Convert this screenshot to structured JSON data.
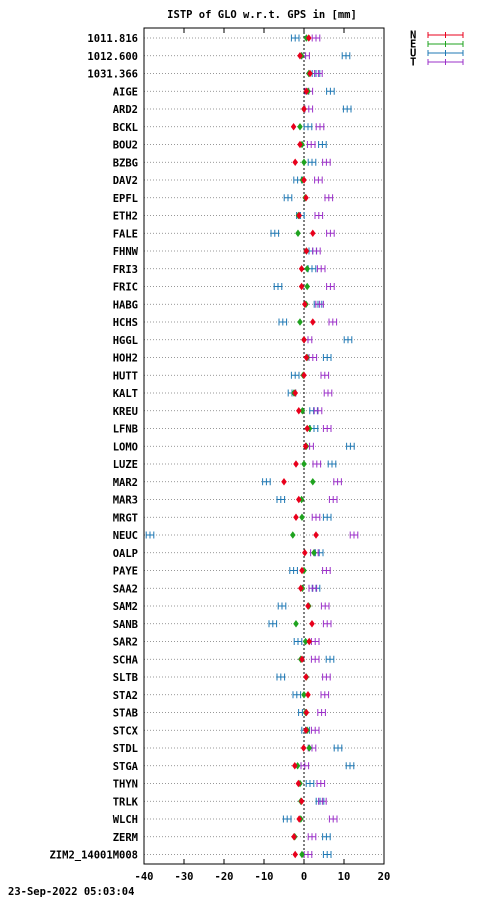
{
  "chart_data": {
    "type": "scatter",
    "title": "ISTP of GLO w.r.t. GPS in [mm]",
    "xlim": [
      -40,
      20
    ],
    "x_ticks": [
      "-40",
      "-30",
      "-20",
      "-10",
      "0",
      "10",
      "20"
    ],
    "x_tick_values": [
      -40,
      -30,
      -20,
      -10,
      0,
      10,
      20
    ],
    "zero_line": "dotted",
    "grid_rows": "dotted",
    "legend_placement": "top-right, outside plot",
    "series": [
      {
        "name": "N",
        "color": "#e8001c",
        "marker": "diamond"
      },
      {
        "name": "E",
        "color": "#1fa31f",
        "marker": "diamond"
      },
      {
        "name": "U",
        "color": "#1f78b4",
        "marker": "errorbar"
      },
      {
        "name": "T",
        "color": "#9b30c8",
        "marker": "errorbar"
      }
    ],
    "stations": [
      {
        "name": "1011.816",
        "N": 1.2,
        "E": 0.6,
        "U": -2.2,
        "T": 3.0
      },
      {
        "name": "1012.600",
        "N": -1.0,
        "E": -0.6,
        "U": 10.5,
        "T": 0.4
      },
      {
        "name": "1031.366",
        "N": 1.5,
        "E": 1.2,
        "U": 3.0,
        "T": 3.6
      },
      {
        "name": "AIGE",
        "N": 0.6,
        "E": 1.0,
        "U": 6.6,
        "T": 1.2
      },
      {
        "name": "ARD2",
        "N": 0.0,
        "E": 0.0,
        "U": 10.8,
        "T": 1.2
      },
      {
        "name": "BCKL",
        "N": -2.6,
        "E": -1.0,
        "U": 1.0,
        "T": 4.0
      },
      {
        "name": "BOU2",
        "N": -1.0,
        "E": -0.5,
        "U": 4.6,
        "T": 1.8
      },
      {
        "name": "BZBG",
        "N": -2.2,
        "E": 0.0,
        "U": 2.0,
        "T": 5.6
      },
      {
        "name": "DAV2",
        "N": 0.0,
        "E": -0.4,
        "U": -1.6,
        "T": 3.6
      },
      {
        "name": "EPFL",
        "N": 0.5,
        "E": 0.3,
        "U": -4.0,
        "T": 6.2
      },
      {
        "name": "ETH2",
        "N": -1.2,
        "E": -1.4,
        "U": -0.9,
        "T": 3.7
      },
      {
        "name": "FALE",
        "N": 2.2,
        "E": -1.5,
        "U": -7.3,
        "T": 6.6
      },
      {
        "name": "FHNW",
        "N": 0.6,
        "E": 0.6,
        "U": 2.2,
        "T": 3.1
      },
      {
        "name": "FRI3",
        "N": -0.6,
        "E": 0.8,
        "U": 2.0,
        "T": 4.3
      },
      {
        "name": "FRIC",
        "N": -0.6,
        "E": 0.8,
        "U": -6.5,
        "T": 6.6
      },
      {
        "name": "HABG",
        "N": 0.2,
        "E": 0.5,
        "U": 3.5,
        "T": 3.9
      },
      {
        "name": "HCHS",
        "N": 2.2,
        "E": -1.0,
        "U": -5.3,
        "T": 7.2
      },
      {
        "name": "HGGL",
        "N": 0.0,
        "E": 0.0,
        "U": 11.0,
        "T": 1.0
      },
      {
        "name": "HOH2",
        "N": 0.6,
        "E": 0.8,
        "U": 5.8,
        "T": 2.2
      },
      {
        "name": "HUTT",
        "N": 0.0,
        "E": -0.2,
        "U": -2.2,
        "T": 5.2
      },
      {
        "name": "KALT",
        "N": -2.2,
        "E": -2.5,
        "U": -3.0,
        "T": 6.0
      },
      {
        "name": "KREU",
        "N": -1.3,
        "E": -0.4,
        "U": 2.4,
        "T": 3.5
      },
      {
        "name": "LFNB",
        "N": 0.8,
        "E": 1.4,
        "U": 2.5,
        "T": 5.8
      },
      {
        "name": "LOMO",
        "N": 0.4,
        "E": 0.6,
        "U": 11.6,
        "T": 1.4
      },
      {
        "name": "LUZE",
        "N": -2.0,
        "E": 0.0,
        "U": 7.0,
        "T": 3.2
      },
      {
        "name": "MAR2",
        "N": -5.0,
        "E": 2.2,
        "U": -9.4,
        "T": 8.4
      },
      {
        "name": "MAR3",
        "N": -1.3,
        "E": -0.6,
        "U": -5.8,
        "T": 7.3
      },
      {
        "name": "MRGT",
        "N": -2.0,
        "E": -0.5,
        "U": 5.8,
        "T": 3.0
      },
      {
        "name": "NEUC",
        "N": 3.0,
        "E": -2.8,
        "U": -38.5,
        "T": 12.5
      },
      {
        "name": "OALP",
        "N": 0.2,
        "E": 2.5,
        "U": 3.8,
        "T": 2.6
      },
      {
        "name": "PAYE",
        "N": -0.5,
        "E": 0.0,
        "U": -2.6,
        "T": 5.6
      },
      {
        "name": "SAA2",
        "N": -0.8,
        "E": -0.4,
        "U": 3.0,
        "T": 2.2
      },
      {
        "name": "SAM2",
        "N": 1.0,
        "E": 1.2,
        "U": -5.5,
        "T": 5.3
      },
      {
        "name": "SANB",
        "N": 2.0,
        "E": -2.0,
        "U": -7.8,
        "T": 5.8
      },
      {
        "name": "SAR2",
        "N": 1.3,
        "E": 0.4,
        "U": -1.5,
        "T": 2.8
      },
      {
        "name": "SCHA",
        "N": -0.5,
        "E": -0.8,
        "U": 6.5,
        "T": 2.8
      },
      {
        "name": "SLTB",
        "N": 0.5,
        "E": 0.6,
        "U": -5.8,
        "T": 5.6
      },
      {
        "name": "STA2",
        "N": 1.0,
        "E": 0.0,
        "U": -1.8,
        "T": 5.2
      },
      {
        "name": "STAB",
        "N": 0.6,
        "E": 0.4,
        "U": -0.4,
        "T": 4.4
      },
      {
        "name": "STCX",
        "N": 0.5,
        "E": 0.8,
        "U": 0.4,
        "T": 2.8
      },
      {
        "name": "STDL",
        "N": -0.1,
        "E": 1.3,
        "U": 8.5,
        "T": 2.0
      },
      {
        "name": "STGA",
        "N": -2.3,
        "E": -1.6,
        "U": 11.5,
        "T": 0.2
      },
      {
        "name": "THYN",
        "N": -1.4,
        "E": -1.0,
        "U": 1.5,
        "T": 4.2
      },
      {
        "name": "TRLK",
        "N": -0.6,
        "E": -0.8,
        "U": 4.0,
        "T": 4.6
      },
      {
        "name": "WLCH",
        "N": -1.2,
        "E": -0.8,
        "U": -4.2,
        "T": 7.3
      },
      {
        "name": "ZERM",
        "N": -2.5,
        "E": -2.3,
        "U": 5.6,
        "T": 2.0
      },
      {
        "name": "ZIM2_14001M008",
        "N": -2.2,
        "E": -0.5,
        "U": 5.8,
        "T": 1.0
      }
    ]
  },
  "footer": {
    "timestamp": "23-Sep-2022 05:03:04"
  }
}
